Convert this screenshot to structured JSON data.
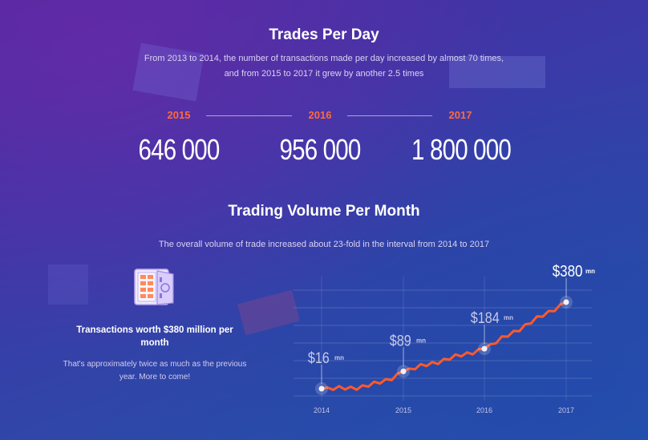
{
  "trades": {
    "title": "Trades Per Day",
    "subtitle_line1": "From 2013 to 2014, the number of transactions made per day increased by almost 70 times,",
    "subtitle_line2": "and from 2015 to 2017 it grew by another 2.5 times",
    "stats": [
      {
        "year": "2015",
        "value": "646 000"
      },
      {
        "year": "2016",
        "value": "956 000"
      },
      {
        "year": "2017",
        "value": "1 800 000"
      }
    ]
  },
  "volume": {
    "title": "Trading Volume Per Month",
    "subtitle": "The overall volume of trade increased about 23-fold in the interval from 2014 to 2017"
  },
  "card": {
    "icon": "safe-icon",
    "title_line1": "Transactions worth $380 million per",
    "title_line2": "month",
    "text_line1": "That's approximately twice as much as the previous",
    "text_line2": "year. More to come!"
  },
  "colors": {
    "accent": "#ff6a3d",
    "line": "#ff5a2a"
  },
  "chart_data": {
    "type": "line",
    "x": [
      "2014",
      "2015",
      "2016",
      "2017"
    ],
    "values": [
      16,
      89,
      184,
      380
    ],
    "labels": [
      {
        "amount": "$16",
        "unit": "mn"
      },
      {
        "amount": "$89",
        "unit": "mn"
      },
      {
        "amount": "$184",
        "unit": "mn"
      },
      {
        "amount": "$380",
        "unit": "mn"
      }
    ],
    "grid": true
  }
}
